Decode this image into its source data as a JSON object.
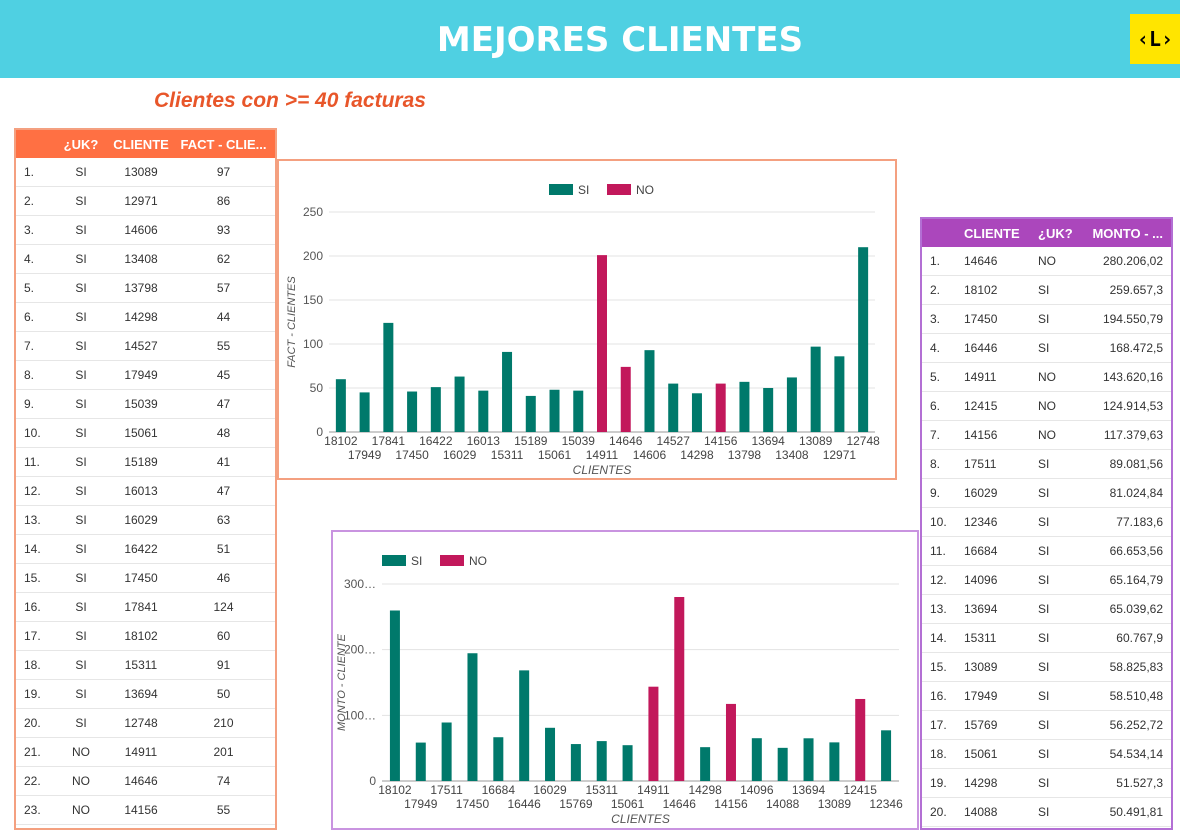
{
  "header": {
    "title": "MEJORES CLIENTES",
    "logo": "‹L›"
  },
  "subtitle": "Clientes con >= 40 facturas",
  "colors": {
    "si": "#00796b",
    "no": "#c2185b",
    "header_bg": "#4fd0e2",
    "left_head": "#ff7043",
    "right_head": "#ab47bc"
  },
  "left_table": {
    "headers": [
      "",
      "¿UK?",
      "CLIENTE",
      "FACT - CLIE..."
    ],
    "rows": [
      [
        "1.",
        "SI",
        "13089",
        "97"
      ],
      [
        "2.",
        "SI",
        "12971",
        "86"
      ],
      [
        "3.",
        "SI",
        "14606",
        "93"
      ],
      [
        "4.",
        "SI",
        "13408",
        "62"
      ],
      [
        "5.",
        "SI",
        "13798",
        "57"
      ],
      [
        "6.",
        "SI",
        "14298",
        "44"
      ],
      [
        "7.",
        "SI",
        "14527",
        "55"
      ],
      [
        "8.",
        "SI",
        "17949",
        "45"
      ],
      [
        "9.",
        "SI",
        "15039",
        "47"
      ],
      [
        "10.",
        "SI",
        "15061",
        "48"
      ],
      [
        "11.",
        "SI",
        "15189",
        "41"
      ],
      [
        "12.",
        "SI",
        "16013",
        "47"
      ],
      [
        "13.",
        "SI",
        "16029",
        "63"
      ],
      [
        "14.",
        "SI",
        "16422",
        "51"
      ],
      [
        "15.",
        "SI",
        "17450",
        "46"
      ],
      [
        "16.",
        "SI",
        "17841",
        "124"
      ],
      [
        "17.",
        "SI",
        "18102",
        "60"
      ],
      [
        "18.",
        "SI",
        "15311",
        "91"
      ],
      [
        "19.",
        "SI",
        "13694",
        "50"
      ],
      [
        "20.",
        "SI",
        "12748",
        "210"
      ],
      [
        "21.",
        "NO",
        "14911",
        "201"
      ],
      [
        "22.",
        "NO",
        "14646",
        "74"
      ],
      [
        "23.",
        "NO",
        "14156",
        "55"
      ]
    ]
  },
  "right_table": {
    "headers": [
      "",
      "CLIENTE",
      "¿UK?",
      "MONTO - ..."
    ],
    "rows": [
      [
        "1.",
        "14646",
        "NO",
        "280.206,02"
      ],
      [
        "2.",
        "18102",
        "SI",
        "259.657,3"
      ],
      [
        "3.",
        "17450",
        "SI",
        "194.550,79"
      ],
      [
        "4.",
        "16446",
        "SI",
        "168.472,5"
      ],
      [
        "5.",
        "14911",
        "NO",
        "143.620,16"
      ],
      [
        "6.",
        "12415",
        "NO",
        "124.914,53"
      ],
      [
        "7.",
        "14156",
        "NO",
        "117.379,63"
      ],
      [
        "8.",
        "17511",
        "SI",
        "89.081,56"
      ],
      [
        "9.",
        "16029",
        "SI",
        "81.024,84"
      ],
      [
        "10.",
        "12346",
        "SI",
        "77.183,6"
      ],
      [
        "11.",
        "16684",
        "SI",
        "66.653,56"
      ],
      [
        "12.",
        "14096",
        "SI",
        "65.164,79"
      ],
      [
        "13.",
        "13694",
        "SI",
        "65.039,62"
      ],
      [
        "14.",
        "15311",
        "SI",
        "60.767,9"
      ],
      [
        "15.",
        "13089",
        "SI",
        "58.825,83"
      ],
      [
        "16.",
        "17949",
        "SI",
        "58.510,48"
      ],
      [
        "17.",
        "15769",
        "SI",
        "56.252,72"
      ],
      [
        "18.",
        "15061",
        "SI",
        "54.534,14"
      ],
      [
        "19.",
        "14298",
        "SI",
        "51.527,3"
      ],
      [
        "20.",
        "14088",
        "SI",
        "50.491,81"
      ]
    ]
  },
  "chart_data": [
    {
      "type": "bar",
      "title": "",
      "xlabel": "CLIENTES",
      "ylabel": "FACT - CLIENTES",
      "ylim": [
        0,
        250
      ],
      "yticks": [
        "0",
        "50",
        "100",
        "150",
        "200",
        "250"
      ],
      "legend": [
        "SI",
        "NO"
      ],
      "legend_position": "top-center",
      "grid": true,
      "categories": [
        "18102",
        "17949",
        "17841",
        "17450",
        "16422",
        "16029",
        "16013",
        "15311",
        "15189",
        "15061",
        "15039",
        "14911",
        "14646",
        "14606",
        "14527",
        "14298",
        "14156",
        "13798",
        "13694",
        "13408",
        "13089",
        "12971",
        "12748"
      ],
      "values": [
        60,
        45,
        124,
        46,
        51,
        63,
        47,
        91,
        41,
        48,
        47,
        201,
        74,
        93,
        55,
        44,
        55,
        57,
        50,
        62,
        97,
        86,
        210
      ],
      "groups": [
        "SI",
        "SI",
        "SI",
        "SI",
        "SI",
        "SI",
        "SI",
        "SI",
        "SI",
        "SI",
        "SI",
        "NO",
        "NO",
        "SI",
        "SI",
        "SI",
        "NO",
        "SI",
        "SI",
        "SI",
        "SI",
        "SI",
        "SI"
      ]
    },
    {
      "type": "bar",
      "title": "",
      "xlabel": "CLIENTES",
      "ylabel": "MONTO - CLIENTE",
      "ylim": [
        0,
        300000
      ],
      "yticks": [
        "0",
        "100…",
        "200…",
        "300…"
      ],
      "legend": [
        "SI",
        "NO"
      ],
      "legend_position": "top-left",
      "grid": true,
      "categories": [
        "18102",
        "17949",
        "17511",
        "17450",
        "16684",
        "16446",
        "16029",
        "15769",
        "15311",
        "15061",
        "14911",
        "14646",
        "14298",
        "14156",
        "14096",
        "14088",
        "13694",
        "13089",
        "12415",
        "12346"
      ],
      "values": [
        259657.3,
        58510.48,
        89081.56,
        194550.79,
        66653.56,
        168472.5,
        81024.84,
        56252.72,
        60767.9,
        54534.14,
        143620.16,
        280206.02,
        51527.3,
        117379.63,
        65164.79,
        50491.81,
        65039.62,
        58825.83,
        124914.53,
        77183.6
      ],
      "groups": [
        "SI",
        "SI",
        "SI",
        "SI",
        "SI",
        "SI",
        "SI",
        "SI",
        "SI",
        "SI",
        "NO",
        "NO",
        "SI",
        "NO",
        "SI",
        "SI",
        "SI",
        "SI",
        "NO",
        "SI"
      ]
    }
  ]
}
